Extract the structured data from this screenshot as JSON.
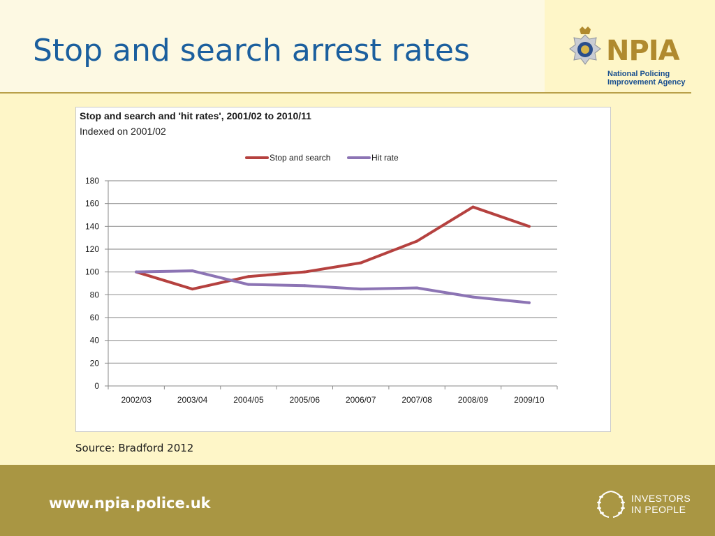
{
  "slide": {
    "title": "Stop and search arrest rates",
    "source": "Source: Bradford 2012",
    "footer_url": "www.npia.police.uk"
  },
  "logo": {
    "wordmark": "NPIA",
    "line1": "National Policing",
    "line2": "Improvement Agency",
    "icon": "police-crest-icon"
  },
  "investors": {
    "line1": "INVESTORS",
    "line2": "IN PEOPLE",
    "icon": "laurel-wreath-icon"
  },
  "colors": {
    "title": "#1b5f9e",
    "footer": "#a99643",
    "stop_series": "#b5413f",
    "hit_series": "#8c74b4"
  },
  "chart_data": {
    "type": "line",
    "title": "Stop and search and 'hit rates', 2001/02 to 2010/11",
    "subtitle": "Indexed on 2001/02",
    "categories": [
      "2002/03",
      "2003/04",
      "2004/05",
      "2005/06",
      "2006/07",
      "2007/08",
      "2008/09",
      "2009/10"
    ],
    "series": [
      {
        "name": "Stop and search",
        "color": "#b5413f",
        "values": [
          100,
          85,
          96,
          100,
          108,
          127,
          157,
          140
        ]
      },
      {
        "name": "Hit rate",
        "color": "#8c74b4",
        "values": [
          100,
          101,
          89,
          88,
          85,
          86,
          78,
          73
        ]
      }
    ],
    "ylim": [
      0,
      180
    ],
    "yticks": [
      0,
      20,
      40,
      60,
      80,
      100,
      120,
      140,
      160,
      180
    ],
    "grid": true,
    "legend_position": "top"
  }
}
